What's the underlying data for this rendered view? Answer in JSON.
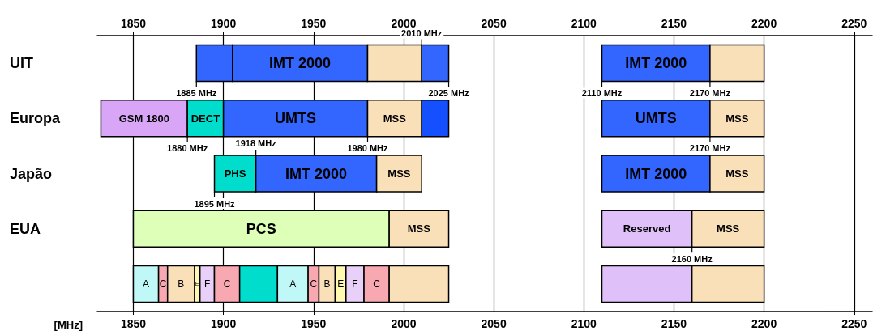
{
  "chart_data": {
    "type": "bar",
    "orientation": "horizontal",
    "xlabel": "[MHz]",
    "categories": [
      "UIT",
      "Europa",
      "Japão",
      "EUA",
      null
    ],
    "xlim": [
      1830,
      2260
    ],
    "xticks": [
      1850,
      1900,
      1950,
      2000,
      2050,
      2100,
      2150,
      2200,
      2250
    ],
    "x2lim": [
      1830,
      2260
    ],
    "x2ticks": [
      1850,
      1900,
      1950,
      2000,
      2050,
      2100,
      2150,
      2200,
      2250
    ],
    "grid": "x",
    "series": [
      {
        "base": [
          1885,
          1832,
          1895,
          1850,
          1850
        ],
        "values": [
          20,
          48,
          23,
          142,
          14
        ],
        "colors": [
          "#3366ff",
          "#d9a6f7",
          "#00ddcc",
          "#ddffb8",
          "#c0f8f8"
        ],
        "value_labels": [
          null,
          "GSM 1800",
          "PHS",
          "PCS",
          "A"
        ]
      },
      {
        "base": [
          1905,
          1880,
          1918,
          1992,
          1864
        ],
        "values": [
          75,
          20,
          67,
          33,
          5
        ],
        "colors": [
          "#3366ff",
          "#00ddcc",
          "#3366ff",
          "#fae0b8",
          "#f8a8b0"
        ],
        "value_labels": [
          "IMT 2000",
          "DECT",
          "IMT 2000",
          "MSS",
          "C"
        ]
      },
      {
        "base": [
          1980,
          1900,
          1985,
          2110,
          1869
        ],
        "values": [
          30,
          80,
          25,
          50,
          15
        ],
        "colors": [
          "#fae0b8",
          "#3366ff",
          "#fae0b8",
          "#e0c0f8",
          "#fae0b8"
        ],
        "value_labels": [
          null,
          "UMTS",
          "MSS",
          "Reserved",
          "B"
        ]
      },
      {
        "base": [
          2010,
          1980,
          2110,
          2160,
          1884
        ],
        "values": [
          15,
          30,
          60,
          40,
          3
        ],
        "colors": [
          "#3366ff",
          "#fae0b8",
          "#3366ff",
          "#fae0b8",
          "#fff8b0"
        ],
        "value_labels": [
          null,
          "MSS",
          "IMT 2000",
          "MSS",
          "E"
        ]
      },
      {
        "base": [
          2110,
          2010,
          2170,
          null,
          1887
        ],
        "values": [
          60,
          15,
          30,
          null,
          8
        ],
        "colors": [
          "#3366ff",
          "#1450ff",
          "#fae0b8",
          null,
          "#e8d0f8"
        ],
        "value_labels": [
          "IMT 2000",
          null,
          "MSS",
          null,
          "F"
        ]
      },
      {
        "base": [
          2170,
          2110,
          null,
          null,
          1895
        ],
        "values": [
          30,
          60,
          null,
          null,
          14
        ],
        "colors": [
          "#fae0b8",
          "#3366ff",
          null,
          null,
          "#f8a8b0"
        ],
        "value_labels": [
          null,
          "UMTS",
          null,
          null,
          "C"
        ]
      },
      {
        "base": [
          null,
          2170,
          null,
          null,
          1909
        ],
        "values": [
          null,
          30,
          null,
          null,
          21
        ],
        "colors": [
          null,
          "#fae0b8",
          null,
          null,
          "#00ddcc"
        ],
        "value_labels": [
          null,
          "MSS",
          null,
          null,
          null
        ]
      },
      {
        "base": [
          null,
          null,
          null,
          null,
          1930
        ],
        "values": [
          null,
          null,
          null,
          null,
          17
        ],
        "colors": [
          null,
          null,
          null,
          null,
          "#c0f8f8"
        ],
        "value_labels": [
          null,
          null,
          null,
          null,
          "A"
        ]
      },
      {
        "base": [
          null,
          null,
          null,
          null,
          1947
        ],
        "values": [
          null,
          null,
          null,
          null,
          6
        ],
        "colors": [
          null,
          null,
          null,
          null,
          "#f8a8b0"
        ],
        "value_labels": [
          null,
          null,
          null,
          null,
          "C"
        ]
      },
      {
        "base": [
          null,
          null,
          null,
          null,
          1953
        ],
        "values": [
          null,
          null,
          null,
          null,
          9
        ],
        "colors": [
          null,
          null,
          null,
          null,
          "#fae0b8"
        ],
        "value_labels": [
          null,
          null,
          null,
          null,
          "B"
        ]
      },
      {
        "base": [
          null,
          null,
          null,
          null,
          1962
        ],
        "values": [
          null,
          null,
          null,
          null,
          6
        ],
        "colors": [
          null,
          null,
          null,
          null,
          "#fff8b0"
        ],
        "value_labels": [
          null,
          null,
          null,
          null,
          "E"
        ]
      },
      {
        "base": [
          null,
          null,
          null,
          null,
          1968
        ],
        "values": [
          null,
          null,
          null,
          null,
          10
        ],
        "colors": [
          null,
          null,
          null,
          null,
          "#e8d0f8"
        ],
        "value_labels": [
          null,
          null,
          null,
          null,
          "F"
        ]
      },
      {
        "base": [
          null,
          null,
          null,
          null,
          1978
        ],
        "values": [
          null,
          null,
          null,
          null,
          14
        ],
        "colors": [
          null,
          null,
          null,
          null,
          "#f8a8b0"
        ],
        "value_labels": [
          null,
          null,
          null,
          null,
          "C"
        ]
      },
      {
        "base": [
          null,
          null,
          null,
          null,
          1992
        ],
        "values": [
          null,
          null,
          null,
          null,
          33
        ],
        "colors": [
          null,
          null,
          null,
          null,
          "#fae0b8"
        ],
        "value_labels": [
          null,
          null,
          null,
          null,
          null
        ]
      },
      {
        "base": [
          null,
          null,
          null,
          null,
          2110
        ],
        "values": [
          null,
          null,
          null,
          null,
          50
        ],
        "colors": [
          null,
          null,
          null,
          null,
          "#e0c0f8"
        ],
        "value_labels": [
          null,
          null,
          null,
          null,
          null
        ]
      },
      {
        "base": [
          null,
          null,
          null,
          null,
          2160
        ],
        "values": [
          null,
          null,
          null,
          null,
          40
        ],
        "colors": [
          null,
          null,
          null,
          null,
          "#fae0b8"
        ],
        "value_labels": [
          null,
          null,
          null,
          null,
          null
        ]
      }
    ],
    "annotations": [
      {
        "text": "1885 MHz",
        "x": 1885,
        "y": "UIT"
      },
      {
        "text": "2025 MHz",
        "x": 2025,
        "y": "UIT"
      },
      {
        "text": "2010 MHz",
        "x": 2010,
        "y": "UIT"
      },
      {
        "text": "2110 MHz",
        "x": 2110,
        "y": "UIT"
      },
      {
        "text": "2170 MHz",
        "x": 2170,
        "y": "UIT"
      },
      {
        "text": "1880 MHz",
        "x": 1880,
        "y": "Europa"
      },
      {
        "text": "1980 MHz",
        "x": 1980,
        "y": "Europa"
      },
      {
        "text": "2170 MHz",
        "x": 2170,
        "y": "Europa"
      },
      {
        "text": "1895 MHz",
        "x": 1895,
        "y": "Japão"
      },
      {
        "text": "1918 MHz",
        "x": 1918,
        "y": "Japão"
      },
      {
        "text": "2160 MHz",
        "x": 2160,
        "y": "EUA"
      }
    ]
  }
}
